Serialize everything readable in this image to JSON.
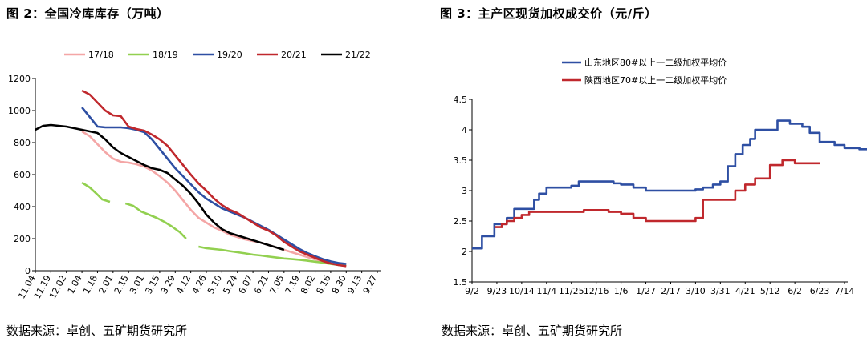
{
  "chart_data": [
    {
      "type": "line",
      "title": "图 2：全国冷库库存（万吨）",
      "source": "数据来源：卓创、五矿期货研究所",
      "ylim": [
        0,
        1200
      ],
      "yticks": [
        0,
        200,
        400,
        600,
        800,
        1000,
        1200
      ],
      "categories": [
        "11.04",
        "11.19",
        "12.02",
        "1.04",
        "1.18",
        "2.01",
        "2.15",
        "3.01",
        "3.15",
        "3.29",
        "4.12",
        "4.26",
        "5.10",
        "5.24",
        "6.07",
        "6.21",
        "7.05",
        "7.19",
        "8.02",
        "8.16",
        "8.30",
        "9.13",
        "9.27"
      ],
      "legend": "top",
      "series": [
        {
          "name": "17/18",
          "color": "#f4a6a6",
          "points": [
            [
              3,
              870
            ],
            [
              3.5,
              840
            ],
            [
              4,
              790
            ],
            [
              4.5,
              740
            ],
            [
              5,
              700
            ],
            [
              5.5,
              680
            ],
            [
              6,
              675
            ],
            [
              6.5,
              665
            ],
            [
              7,
              650
            ],
            [
              7.5,
              625
            ],
            [
              8,
              590
            ],
            [
              8.5,
              550
            ],
            [
              9,
              500
            ],
            [
              9.5,
              440
            ],
            [
              10,
              380
            ],
            [
              10.5,
              330
            ],
            [
              11,
              300
            ],
            [
              11.5,
              270
            ],
            [
              12,
              250
            ],
            [
              12.5,
              225
            ],
            [
              13,
              210
            ],
            [
              13.5,
              195
            ],
            [
              14,
              185
            ],
            [
              14.5,
              175
            ],
            [
              15,
              160
            ],
            [
              15.5,
              145
            ],
            [
              16,
              130
            ],
            [
              16.5,
              115
            ],
            [
              17,
              100
            ],
            [
              17.5,
              85
            ],
            [
              18,
              70
            ],
            [
              18.5,
              58
            ],
            [
              19,
              48
            ],
            [
              19.5,
              40
            ],
            [
              20,
              34
            ]
          ]
        },
        {
          "name": "18/19",
          "color": "#92d050",
          "points": [
            [
              3,
              550
            ],
            [
              3.5,
              520
            ],
            [
              4,
              475
            ],
            [
              4.3,
              445
            ],
            [
              4.8,
              430
            ]
          ]
        },
        {
          "name": "18/19",
          "color": "#92d050",
          "points": [
            [
              5.8,
              420
            ],
            [
              6.3,
              405
            ],
            [
              6.8,
              370
            ],
            [
              7.3,
              350
            ],
            [
              7.8,
              330
            ],
            [
              8.3,
              305
            ],
            [
              8.8,
              275
            ],
            [
              9.3,
              240
            ],
            [
              9.7,
              200
            ]
          ]
        },
        {
          "name": "18/19",
          "color": "#92d050",
          "points": [
            [
              10.5,
              150
            ],
            [
              11,
              140
            ],
            [
              11.5,
              135
            ],
            [
              12,
              130
            ],
            [
              12.5,
              122
            ],
            [
              13,
              115
            ],
            [
              13.5,
              108
            ],
            [
              14,
              100
            ],
            [
              14.5,
              95
            ],
            [
              15,
              88
            ],
            [
              15.5,
              82
            ],
            [
              16,
              76
            ],
            [
              16.5,
              72
            ],
            [
              17,
              68
            ],
            [
              17.5,
              62
            ],
            [
              18,
              56
            ],
            [
              18.5,
              50
            ],
            [
              19,
              42
            ],
            [
              19.5,
              36
            ],
            [
              20,
              30
            ]
          ]
        },
        {
          "name": "19/20",
          "color": "#2e4fa3",
          "points": [
            [
              3,
              1020
            ],
            [
              3.5,
              960
            ],
            [
              4,
              900
            ],
            [
              4.5,
              895
            ],
            [
              5,
              895
            ],
            [
              5.5,
              895
            ],
            [
              6,
              890
            ],
            [
              6.5,
              880
            ],
            [
              7,
              865
            ],
            [
              7.5,
              820
            ],
            [
              8,
              760
            ],
            [
              8.5,
              700
            ],
            [
              9,
              640
            ],
            [
              9.5,
              590
            ],
            [
              10,
              540
            ],
            [
              10.5,
              490
            ],
            [
              11,
              450
            ],
            [
              11.5,
              420
            ],
            [
              12,
              390
            ],
            [
              12.5,
              370
            ],
            [
              13,
              350
            ],
            [
              13.5,
              330
            ],
            [
              14,
              305
            ],
            [
              14.5,
              280
            ],
            [
              15,
              255
            ],
            [
              15.5,
              225
            ],
            [
              16,
              195
            ],
            [
              16.5,
              165
            ],
            [
              17,
              135
            ],
            [
              17.5,
              110
            ],
            [
              18,
              90
            ],
            [
              18.5,
              72
            ],
            [
              19,
              58
            ],
            [
              19.5,
              48
            ],
            [
              20,
              42
            ]
          ]
        },
        {
          "name": "20/21",
          "color": "#c0282d",
          "points": [
            [
              3,
              1125
            ],
            [
              3.5,
              1100
            ],
            [
              4,
              1050
            ],
            [
              4.5,
              1000
            ],
            [
              5,
              970
            ],
            [
              5.5,
              965
            ],
            [
              6,
              900
            ],
            [
              6.5,
              885
            ],
            [
              7,
              875
            ],
            [
              7.5,
              850
            ],
            [
              8,
              820
            ],
            [
              8.5,
              780
            ],
            [
              9,
              720
            ],
            [
              9.5,
              660
            ],
            [
              10,
              600
            ],
            [
              10.5,
              545
            ],
            [
              11,
              500
            ],
            [
              11.5,
              450
            ],
            [
              12,
              410
            ],
            [
              12.5,
              380
            ],
            [
              13,
              360
            ],
            [
              13.5,
              330
            ],
            [
              14,
              300
            ],
            [
              14.5,
              270
            ],
            [
              15,
              250
            ],
            [
              15.5,
              220
            ],
            [
              16,
              180
            ],
            [
              16.5,
              150
            ],
            [
              17,
              120
            ],
            [
              17.5,
              100
            ],
            [
              18,
              80
            ],
            [
              18.5,
              60
            ],
            [
              19,
              45
            ],
            [
              19.5,
              35
            ],
            [
              20,
              28
            ]
          ]
        },
        {
          "name": "21/22",
          "color": "#000000",
          "points": [
            [
              0,
              880
            ],
            [
              0.5,
              905
            ],
            [
              1,
              910
            ],
            [
              1.5,
              905
            ],
            [
              2,
              900
            ],
            [
              2.5,
              890
            ],
            [
              3,
              880
            ],
            [
              3.5,
              870
            ],
            [
              4,
              860
            ],
            [
              4.5,
              820
            ],
            [
              5,
              770
            ],
            [
              5.5,
              735
            ],
            [
              6,
              710
            ],
            [
              6.5,
              685
            ],
            [
              7,
              660
            ],
            [
              7.5,
              640
            ],
            [
              8,
              630
            ],
            [
              8.5,
              610
            ],
            [
              9,
              570
            ],
            [
              9.5,
              530
            ],
            [
              10,
              480
            ],
            [
              10.5,
              420
            ],
            [
              11,
              350
            ],
            [
              11.5,
              300
            ],
            [
              12,
              260
            ],
            [
              12.5,
              235
            ],
            [
              13,
              220
            ],
            [
              13.5,
              205
            ],
            [
              14,
              190
            ],
            [
              14.5,
              175
            ],
            [
              15,
              160
            ],
            [
              15.5,
              145
            ],
            [
              16,
              130
            ]
          ]
        }
      ]
    },
    {
      "type": "line",
      "title": "图 3：主产区现货加权成交价（元/斤）",
      "source": "数据来源：卓创、五矿期货研究所",
      "ylim": [
        1.5,
        4.5
      ],
      "yticks": [
        1.5,
        2,
        2.5,
        3,
        3.5,
        4,
        4.5
      ],
      "categories": [
        "9/2",
        "9/23",
        "10/14",
        "11/4",
        "11/25",
        "12/16",
        "1/6",
        "1/27",
        "2/17",
        "3/10",
        "3/31",
        "4/21",
        "5/12",
        "6/2",
        "6/23",
        "7/14"
      ],
      "legend": "top-left",
      "series": [
        {
          "name": "山东地区80#以上一二级加权平均价",
          "color": "#2e4fa3",
          "step": true,
          "points": [
            [
              0,
              2.05
            ],
            [
              0.2,
              2.05
            ],
            [
              0.4,
              2.25
            ],
            [
              0.9,
              2.45
            ],
            [
              1.2,
              2.45
            ],
            [
              1.4,
              2.55
            ],
            [
              1.7,
              2.7
            ],
            [
              2.3,
              2.7
            ],
            [
              2.5,
              2.85
            ],
            [
              2.7,
              2.95
            ],
            [
              3,
              3.05
            ],
            [
              3.5,
              3.05
            ],
            [
              4,
              3.08
            ],
            [
              4.3,
              3.15
            ],
            [
              5.3,
              3.15
            ],
            [
              5.7,
              3.12
            ],
            [
              6,
              3.1
            ],
            [
              6.5,
              3.05
            ],
            [
              7,
              3.0
            ],
            [
              7.5,
              3.0
            ],
            [
              8,
              3.0
            ],
            [
              8.5,
              3.0
            ],
            [
              9,
              3.02
            ],
            [
              9.3,
              3.05
            ],
            [
              9.7,
              3.1
            ],
            [
              10,
              3.15
            ],
            [
              10.3,
              3.4
            ],
            [
              10.6,
              3.6
            ],
            [
              10.9,
              3.75
            ],
            [
              11.2,
              3.85
            ],
            [
              11.4,
              4.0
            ],
            [
              11.8,
              4.0
            ],
            [
              12,
              4.0
            ],
            [
              12.3,
              4.15
            ],
            [
              12.8,
              4.1
            ],
            [
              13.3,
              4.05
            ],
            [
              13.6,
              3.95
            ],
            [
              14,
              3.8
            ],
            [
              14.6,
              3.75
            ],
            [
              15,
              3.7
            ],
            [
              15.6,
              3.68
            ],
            [
              16,
              3.65
            ]
          ]
        },
        {
          "name": "陕西地区70#以上一二级加权平均价",
          "color": "#c0282d",
          "step": true,
          "points": [
            [
              0.9,
              2.4
            ],
            [
              1.2,
              2.45
            ],
            [
              1.4,
              2.5
            ],
            [
              1.7,
              2.55
            ],
            [
              2,
              2.6
            ],
            [
              2.3,
              2.65
            ],
            [
              3,
              2.65
            ],
            [
              3.6,
              2.65
            ],
            [
              4,
              2.65
            ],
            [
              4.5,
              2.68
            ],
            [
              5,
              2.68
            ],
            [
              5.5,
              2.65
            ],
            [
              6,
              2.62
            ],
            [
              6.5,
              2.55
            ],
            [
              7,
              2.5
            ],
            [
              7.5,
              2.5
            ],
            [
              8,
              2.5
            ],
            [
              8.5,
              2.5
            ],
            [
              9,
              2.55
            ],
            [
              9.3,
              2.85
            ],
            [
              10,
              2.85
            ],
            [
              10.3,
              2.85
            ],
            [
              10.6,
              3.0
            ],
            [
              11,
              3.1
            ],
            [
              11.4,
              3.2
            ],
            [
              11.8,
              3.2
            ],
            [
              12,
              3.42
            ],
            [
              12.5,
              3.5
            ],
            [
              13,
              3.45
            ],
            [
              13.5,
              3.45
            ],
            [
              14,
              3.45
            ]
          ]
        }
      ]
    }
  ]
}
